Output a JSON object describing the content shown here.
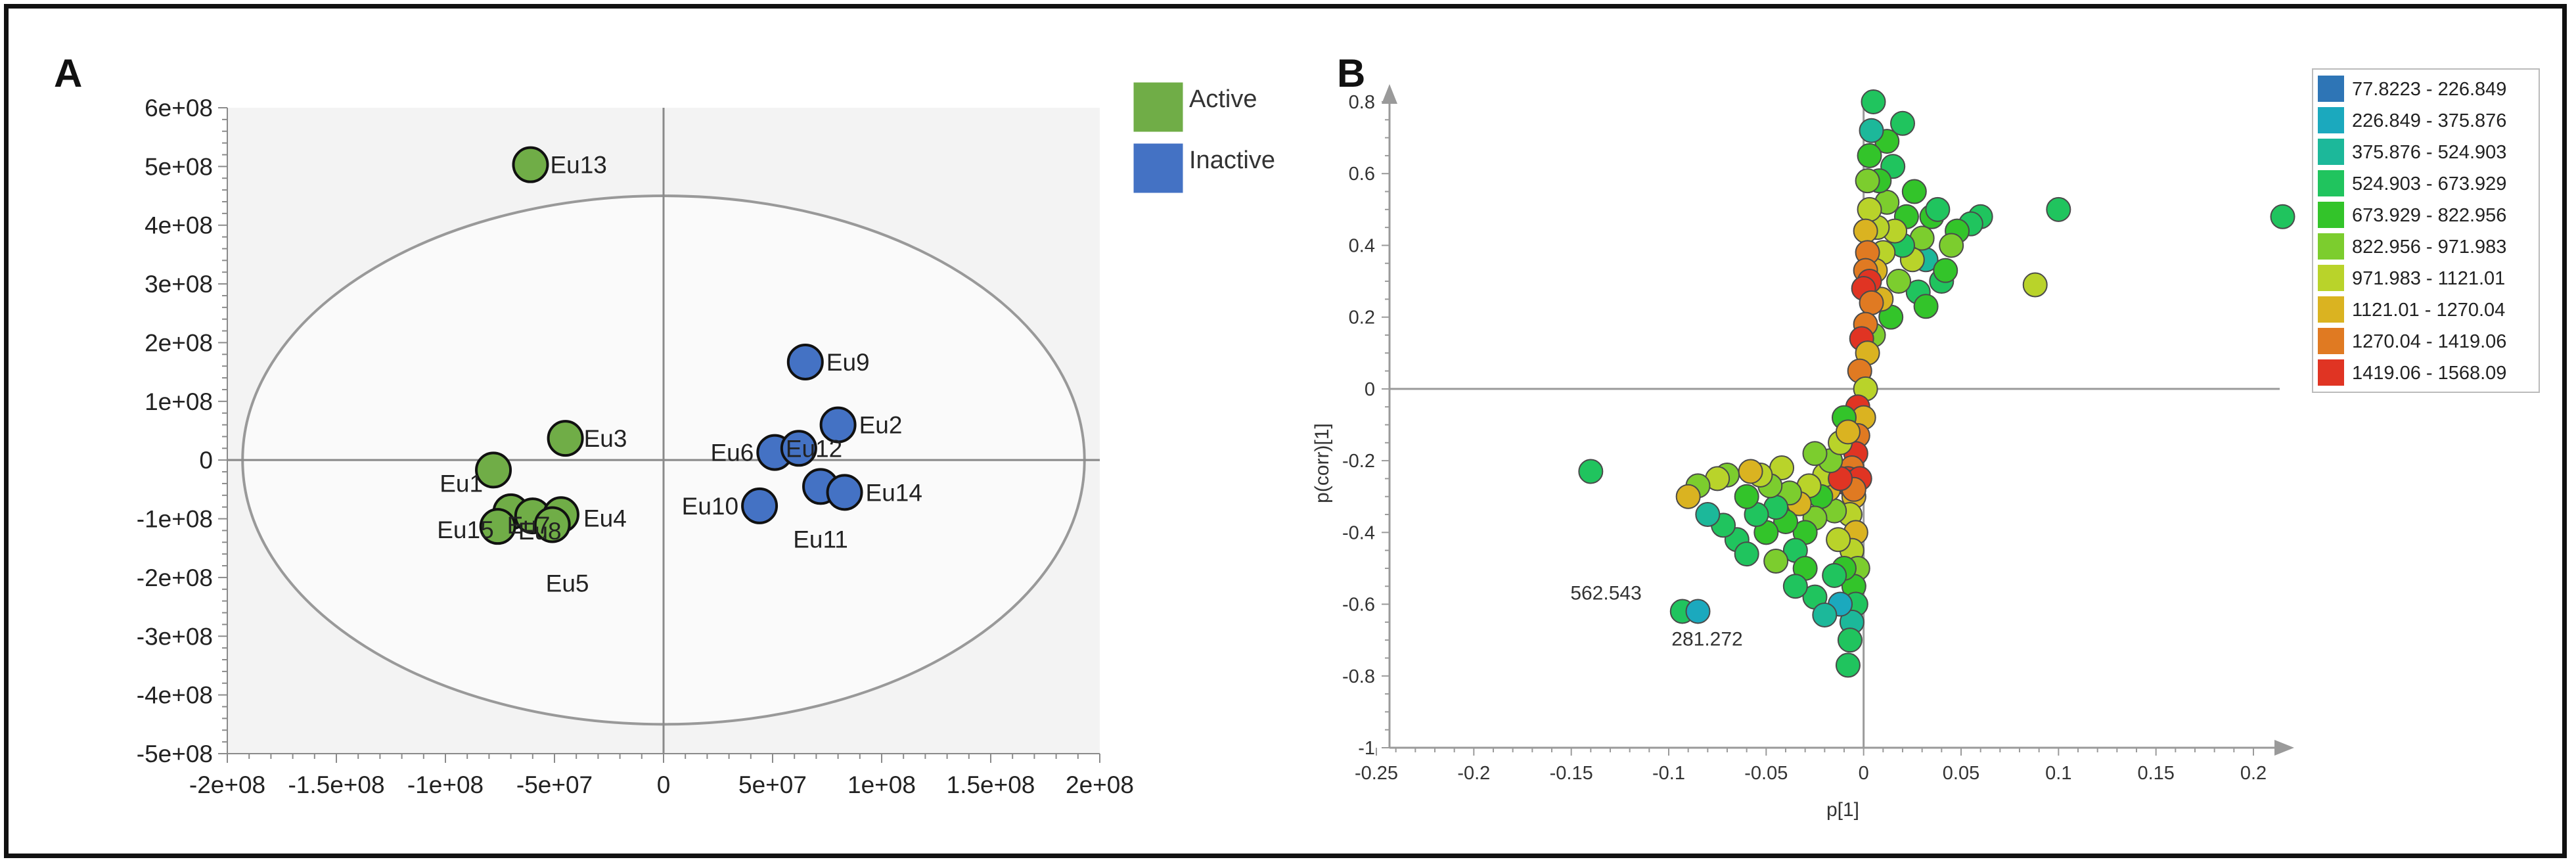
{
  "panel_a": {
    "letter": "A",
    "chart_data": {
      "type": "scatter",
      "title": "",
      "xlim": [
        -200000000,
        200000000
      ],
      "ylim": [
        -500000000,
        600000000
      ],
      "xticks": [
        -200000000,
        -150000000,
        -100000000,
        -50000000,
        0,
        50000000,
        100000000,
        150000000,
        200000000
      ],
      "xtick_labels": [
        "-2e+08",
        "-1.5e+08",
        "-1e+08",
        "-5e+07",
        "0",
        "5e+07",
        "1e+08",
        "1.5e+08",
        "2e+08"
      ],
      "yticks": [
        600000000,
        500000000,
        400000000,
        300000000,
        200000000,
        100000000,
        0,
        -100000000,
        -200000000,
        -300000000,
        -400000000,
        -500000000
      ],
      "ytick_labels": [
        "6e+08",
        "5e+08",
        "4e+08",
        "3e+08",
        "2e+08",
        "1e+08",
        "0",
        "-1e+08",
        "-2e+08",
        "-3e+08",
        "-4e+08",
        "-5e+08"
      ],
      "ellipse": {
        "center": [
          0,
          0
        ],
        "radius_x": 193000000,
        "radius_y": 450000000
      },
      "legend": [
        {
          "label": "Active",
          "color": "#70ad47"
        },
        {
          "label": "Inactive",
          "color": "#4472c4"
        }
      ],
      "points": [
        {
          "name": "Eu13",
          "x": -61000000,
          "y": 503000000,
          "group": "Active"
        },
        {
          "name": "Eu3",
          "x": -45000000,
          "y": 37000000,
          "group": "Active"
        },
        {
          "name": "Eu1",
          "x": -78000000,
          "y": -17000000,
          "group": "Active"
        },
        {
          "name": "Eu7",
          "x": -70000000,
          "y": -88000000,
          "group": "Active"
        },
        {
          "name": "Eu8",
          "x": -60000000,
          "y": -95000000,
          "group": "Active"
        },
        {
          "name": "Eu4",
          "x": -47000000,
          "y": -93000000,
          "group": "Active"
        },
        {
          "name": "Eu15",
          "x": -76000000,
          "y": -113000000,
          "group": "Active"
        },
        {
          "name": "Eu5",
          "x": -51000000,
          "y": -110000000,
          "group": "Active"
        },
        {
          "name": "Eu9",
          "x": 65000000,
          "y": 167000000,
          "group": "Inactive"
        },
        {
          "name": "Eu2",
          "x": 80000000,
          "y": 60000000,
          "group": "Inactive"
        },
        {
          "name": "Eu6",
          "x": 51000000,
          "y": 13000000,
          "group": "Inactive"
        },
        {
          "name": "Eu12",
          "x": 62000000,
          "y": 20000000,
          "group": "Inactive"
        },
        {
          "name": "Eu10",
          "x": 44000000,
          "y": -78000000,
          "group": "Inactive"
        },
        {
          "name": "Eu11",
          "x": 72000000,
          "y": -45000000,
          "group": "Inactive"
        },
        {
          "name": "Eu14",
          "x": 83000000,
          "y": -55000000,
          "group": "Inactive"
        }
      ]
    }
  },
  "panel_b": {
    "letter": "B",
    "chart_data": {
      "type": "scatter",
      "title": "",
      "xlabel": "p[1]",
      "ylabel": "p(corr)[1]",
      "xlim": [
        -0.25,
        0.2
      ],
      "ylim": [
        -1,
        0.8
      ],
      "xticks": [
        -0.25,
        -0.2,
        -0.15,
        -0.1,
        -0.05,
        0,
        0.05,
        0.1,
        0.15,
        0.2
      ],
      "xtick_labels": [
        "-0.25",
        "-0.2",
        "-0.15",
        "-0.1",
        "-0.05",
        "0",
        "0.05",
        "0.1",
        "0.15",
        "0.2"
      ],
      "yticks": [
        0.8,
        0.6,
        0.4,
        0.2,
        0,
        -0.2,
        -0.4,
        -0.6,
        -0.8,
        -1
      ],
      "ytick_labels": [
        "0.8",
        "0.6",
        "0.4",
        "0.2",
        "0",
        "-0.2",
        "-0.4",
        "-0.6",
        "-0.8",
        "-1"
      ],
      "legend": [
        {
          "label": "77.8223 - 226.849",
          "color": "#2e75b6"
        },
        {
          "label": "226.849 - 375.876",
          "color": "#1ba9be"
        },
        {
          "label": "375.876 - 524.903",
          "color": "#1cb89a"
        },
        {
          "label": "524.903 - 673.929",
          "color": "#20c45e"
        },
        {
          "label": "673.929 - 822.956",
          "color": "#33c42a"
        },
        {
          "label": "822.956 - 971.983",
          "color": "#7ccd2e"
        },
        {
          "label": "971.983 - 1121.01",
          "color": "#b9d32a"
        },
        {
          "label": "1121.01 - 1270.04",
          "color": "#dab321"
        },
        {
          "label": "1270.04 - 1419.06",
          "color": "#e07a22"
        },
        {
          "label": "1419.06 - 1568.09",
          "color": "#e03423"
        }
      ],
      "annotations": [
        {
          "text": "562.543",
          "x": -0.093,
          "y": -0.62
        },
        {
          "text": "281.272",
          "x": -0.085,
          "y": -0.62
        }
      ],
      "points": [
        {
          "x": 0.215,
          "y": 0.48,
          "bin": 3
        },
        {
          "x": 0.1,
          "y": 0.5,
          "bin": 3
        },
        {
          "x": 0.088,
          "y": 0.29,
          "bin": 6
        },
        {
          "x": 0.06,
          "y": 0.48,
          "bin": 3
        },
        {
          "x": 0.055,
          "y": 0.46,
          "bin": 3
        },
        {
          "x": 0.048,
          "y": 0.44,
          "bin": 4
        },
        {
          "x": 0.045,
          "y": 0.4,
          "bin": 5
        },
        {
          "x": 0.04,
          "y": 0.3,
          "bin": 3
        },
        {
          "x": 0.035,
          "y": 0.48,
          "bin": 4
        },
        {
          "x": 0.032,
          "y": 0.36,
          "bin": 2
        },
        {
          "x": 0.03,
          "y": 0.42,
          "bin": 5
        },
        {
          "x": 0.028,
          "y": 0.27,
          "bin": 3
        },
        {
          "x": 0.025,
          "y": 0.36,
          "bin": 6
        },
        {
          "x": 0.022,
          "y": 0.48,
          "bin": 4
        },
        {
          "x": 0.02,
          "y": 0.4,
          "bin": 3
        },
        {
          "x": 0.018,
          "y": 0.3,
          "bin": 5
        },
        {
          "x": 0.016,
          "y": 0.44,
          "bin": 6
        },
        {
          "x": 0.015,
          "y": 0.62,
          "bin": 3
        },
        {
          "x": 0.014,
          "y": 0.2,
          "bin": 4
        },
        {
          "x": 0.012,
          "y": 0.52,
          "bin": 5
        },
        {
          "x": 0.01,
          "y": 0.38,
          "bin": 6
        },
        {
          "x": 0.009,
          "y": 0.25,
          "bin": 7
        },
        {
          "x": 0.008,
          "y": 0.58,
          "bin": 4
        },
        {
          "x": 0.007,
          "y": 0.45,
          "bin": 6
        },
        {
          "x": 0.006,
          "y": 0.33,
          "bin": 7
        },
        {
          "x": 0.005,
          "y": 0.15,
          "bin": 5
        },
        {
          "x": 0.02,
          "y": 0.74,
          "bin": 3
        },
        {
          "x": 0.012,
          "y": 0.69,
          "bin": 4
        },
        {
          "x": 0.032,
          "y": 0.23,
          "bin": 4
        },
        {
          "x": 0.038,
          "y": 0.5,
          "bin": 3
        },
        {
          "x": 0.042,
          "y": 0.33,
          "bin": 4
        },
        {
          "x": 0.026,
          "y": 0.55,
          "bin": 4
        },
        {
          "x": 0.005,
          "y": 0.8,
          "bin": 3
        },
        {
          "x": 0.004,
          "y": 0.72,
          "bin": 2
        },
        {
          "x": 0.003,
          "y": 0.65,
          "bin": 4
        },
        {
          "x": 0.002,
          "y": 0.58,
          "bin": 5
        },
        {
          "x": 0.003,
          "y": 0.5,
          "bin": 6
        },
        {
          "x": 0.001,
          "y": 0.44,
          "bin": 7
        },
        {
          "x": 0.002,
          "y": 0.38,
          "bin": 8
        },
        {
          "x": 0.001,
          "y": 0.33,
          "bin": 8
        },
        {
          "x": 0.003,
          "y": 0.3,
          "bin": 9
        },
        {
          "x": 0.0,
          "y": 0.28,
          "bin": 9
        },
        {
          "x": 0.004,
          "y": 0.24,
          "bin": 8
        },
        {
          "x": 0.001,
          "y": 0.18,
          "bin": 8
        },
        {
          "x": -0.001,
          "y": 0.14,
          "bin": 9
        },
        {
          "x": 0.002,
          "y": 0.1,
          "bin": 7
        },
        {
          "x": -0.002,
          "y": 0.05,
          "bin": 8
        },
        {
          "x": 0.001,
          "y": 0.0,
          "bin": 6
        },
        {
          "x": -0.003,
          "y": -0.05,
          "bin": 9
        },
        {
          "x": 0.0,
          "y": -0.08,
          "bin": 7
        },
        {
          "x": -0.003,
          "y": -0.13,
          "bin": 8
        },
        {
          "x": -0.004,
          "y": -0.18,
          "bin": 9
        },
        {
          "x": -0.006,
          "y": -0.22,
          "bin": 8
        },
        {
          "x": -0.008,
          "y": -0.25,
          "bin": 9
        },
        {
          "x": -0.01,
          "y": -0.26,
          "bin": 9
        },
        {
          "x": -0.005,
          "y": -0.3,
          "bin": 7
        },
        {
          "x": -0.007,
          "y": -0.35,
          "bin": 6
        },
        {
          "x": -0.004,
          "y": -0.4,
          "bin": 7
        },
        {
          "x": -0.006,
          "y": -0.45,
          "bin": 6
        },
        {
          "x": -0.003,
          "y": -0.5,
          "bin": 5
        },
        {
          "x": -0.005,
          "y": -0.55,
          "bin": 4
        },
        {
          "x": -0.004,
          "y": -0.6,
          "bin": 3
        },
        {
          "x": -0.006,
          "y": -0.65,
          "bin": 2
        },
        {
          "x": -0.007,
          "y": -0.7,
          "bin": 3
        },
        {
          "x": -0.008,
          "y": -0.77,
          "bin": 3
        },
        {
          "x": -0.012,
          "y": -0.6,
          "bin": 1
        },
        {
          "x": -0.01,
          "y": -0.5,
          "bin": 4
        },
        {
          "x": -0.013,
          "y": -0.42,
          "bin": 6
        },
        {
          "x": -0.015,
          "y": -0.34,
          "bin": 5
        },
        {
          "x": -0.018,
          "y": -0.28,
          "bin": 7
        },
        {
          "x": -0.02,
          "y": -0.24,
          "bin": 6
        },
        {
          "x": -0.022,
          "y": -0.3,
          "bin": 4
        },
        {
          "x": -0.025,
          "y": -0.36,
          "bin": 5
        },
        {
          "x": -0.028,
          "y": -0.27,
          "bin": 6
        },
        {
          "x": -0.03,
          "y": -0.4,
          "bin": 4
        },
        {
          "x": -0.033,
          "y": -0.32,
          "bin": 7
        },
        {
          "x": -0.035,
          "y": -0.45,
          "bin": 3
        },
        {
          "x": -0.038,
          "y": -0.29,
          "bin": 5
        },
        {
          "x": -0.04,
          "y": -0.37,
          "bin": 4
        },
        {
          "x": -0.042,
          "y": -0.22,
          "bin": 6
        },
        {
          "x": -0.045,
          "y": -0.33,
          "bin": 3
        },
        {
          "x": -0.048,
          "y": -0.27,
          "bin": 5
        },
        {
          "x": -0.05,
          "y": -0.4,
          "bin": 4
        },
        {
          "x": -0.053,
          "y": -0.24,
          "bin": 6
        },
        {
          "x": -0.055,
          "y": -0.35,
          "bin": 3
        },
        {
          "x": -0.058,
          "y": -0.23,
          "bin": 7
        },
        {
          "x": -0.06,
          "y": -0.3,
          "bin": 4
        },
        {
          "x": -0.065,
          "y": -0.42,
          "bin": 3
        },
        {
          "x": -0.07,
          "y": -0.24,
          "bin": 5
        },
        {
          "x": -0.072,
          "y": -0.38,
          "bin": 3
        },
        {
          "x": -0.075,
          "y": -0.25,
          "bin": 6
        },
        {
          "x": -0.08,
          "y": -0.35,
          "bin": 2
        },
        {
          "x": -0.085,
          "y": -0.27,
          "bin": 5
        },
        {
          "x": -0.09,
          "y": -0.3,
          "bin": 7
        },
        {
          "x": -0.14,
          "y": -0.23,
          "bin": 3
        },
        {
          "x": -0.093,
          "y": -0.62,
          "bin": 3
        },
        {
          "x": -0.085,
          "y": -0.62,
          "bin": 1
        },
        {
          "x": -0.025,
          "y": -0.58,
          "bin": 3
        },
        {
          "x": -0.02,
          "y": -0.63,
          "bin": 2
        },
        {
          "x": -0.015,
          "y": -0.52,
          "bin": 3
        },
        {
          "x": -0.03,
          "y": -0.5,
          "bin": 4
        },
        {
          "x": -0.045,
          "y": -0.48,
          "bin": 5
        },
        {
          "x": -0.06,
          "y": -0.46,
          "bin": 3
        },
        {
          "x": -0.035,
          "y": -0.55,
          "bin": 3
        },
        {
          "x": -0.008,
          "y": -0.26,
          "bin": 9
        },
        {
          "x": -0.002,
          "y": -0.25,
          "bin": 9
        },
        {
          "x": -0.005,
          "y": -0.28,
          "bin": 8
        },
        {
          "x": -0.012,
          "y": -0.25,
          "bin": 9
        },
        {
          "x": -0.017,
          "y": -0.2,
          "bin": 5
        },
        {
          "x": -0.012,
          "y": -0.15,
          "bin": 6
        },
        {
          "x": -0.01,
          "y": -0.08,
          "bin": 4
        },
        {
          "x": -0.008,
          "y": -0.12,
          "bin": 7
        },
        {
          "x": -0.025,
          "y": -0.18,
          "bin": 5
        }
      ]
    }
  }
}
